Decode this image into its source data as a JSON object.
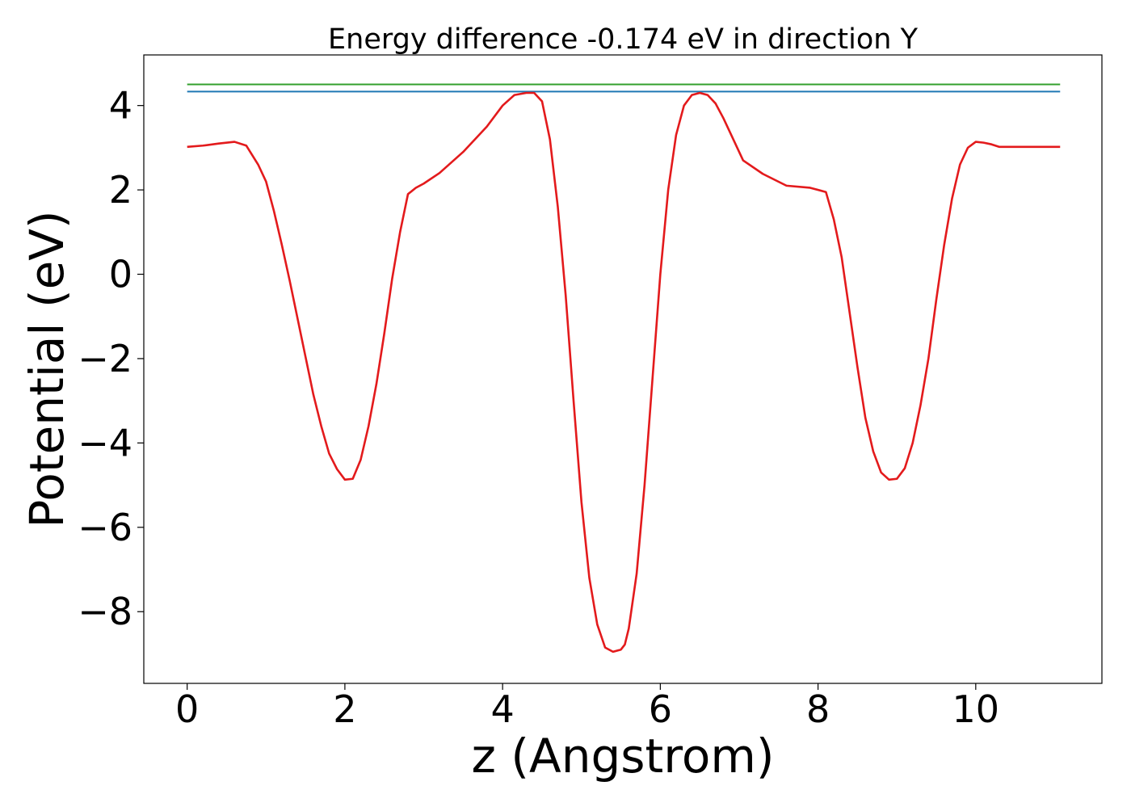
{
  "chart_data": {
    "type": "line",
    "title": "Energy difference -0.174 eV in direction Y",
    "xlabel": "z (Angstrom)",
    "ylabel": "Potential (eV)",
    "xlim": [
      -0.55,
      11.6
    ],
    "ylim": [
      -9.7,
      5.2
    ],
    "x_ticks": [
      0,
      2,
      4,
      6,
      8,
      10
    ],
    "x_tick_labels": [
      "0",
      "2",
      "4",
      "6",
      "8",
      "10"
    ],
    "y_ticks": [
      4,
      2,
      0,
      -2,
      -4,
      -6,
      -8
    ],
    "y_tick_labels": [
      "4",
      "2",
      "0",
      "−2",
      "−4",
      "−6",
      "−8"
    ],
    "grid": false,
    "legend": "none",
    "series": [
      {
        "color": "#e31a1c",
        "style": "line",
        "x": [
          0,
          0.2,
          0.4,
          0.6,
          0.75,
          0.9,
          1.0,
          1.1,
          1.2,
          1.3,
          1.4,
          1.5,
          1.6,
          1.7,
          1.8,
          1.9,
          2.0,
          2.1,
          2.2,
          2.3,
          2.4,
          2.5,
          2.6,
          2.7,
          2.8,
          2.9,
          3.0,
          3.2,
          3.5,
          3.8,
          4.0,
          4.15,
          4.3,
          4.4,
          4.5,
          4.6,
          4.7,
          4.8,
          4.9,
          5.0,
          5.1,
          5.2,
          5.3,
          5.4,
          5.5,
          5.55,
          5.6,
          5.7,
          5.8,
          5.9,
          6.0,
          6.1,
          6.2,
          6.3,
          6.4,
          6.5,
          6.6,
          6.7,
          6.8,
          6.9,
          7.05,
          7.3,
          7.6,
          7.9,
          8.1,
          8.2,
          8.3,
          8.4,
          8.5,
          8.6,
          8.7,
          8.8,
          8.9,
          9.0,
          9.1,
          9.2,
          9.3,
          9.4,
          9.5,
          9.6,
          9.7,
          9.8,
          9.9,
          10.0,
          10.1,
          10.2,
          10.3,
          10.45,
          10.6,
          10.85,
          11.07
        ],
        "y": [
          3.02,
          3.05,
          3.1,
          3.14,
          3.05,
          2.6,
          2.2,
          1.5,
          0.7,
          -0.15,
          -1.05,
          -1.95,
          -2.85,
          -3.6,
          -4.25,
          -4.62,
          -4.87,
          -4.85,
          -4.4,
          -3.6,
          -2.6,
          -1.4,
          -0.1,
          1.0,
          1.9,
          2.05,
          2.15,
          2.4,
          2.9,
          3.5,
          4.0,
          4.25,
          4.3,
          4.3,
          4.1,
          3.2,
          1.6,
          -0.5,
          -3.0,
          -5.4,
          -7.2,
          -8.3,
          -8.85,
          -8.95,
          -8.9,
          -8.78,
          -8.4,
          -7.1,
          -5.0,
          -2.5,
          0.0,
          2.0,
          3.3,
          4.0,
          4.25,
          4.3,
          4.25,
          4.05,
          3.7,
          3.3,
          2.7,
          2.38,
          2.1,
          2.05,
          1.95,
          1.3,
          0.4,
          -0.9,
          -2.2,
          -3.4,
          -4.2,
          -4.7,
          -4.87,
          -4.85,
          -4.6,
          -4.0,
          -3.1,
          -2.0,
          -0.6,
          0.7,
          1.8,
          2.6,
          3.0,
          3.14,
          3.12,
          3.08,
          3.02,
          3.02,
          3.02,
          3.02,
          3.02
        ]
      },
      {
        "color": "#1f78b4",
        "style": "hline",
        "x": [
          0,
          11.07
        ],
        "y": [
          4.33,
          4.33
        ]
      },
      {
        "color": "#33a02c",
        "style": "hline",
        "x": [
          0,
          11.07
        ],
        "y": [
          4.5,
          4.5
        ]
      }
    ]
  }
}
